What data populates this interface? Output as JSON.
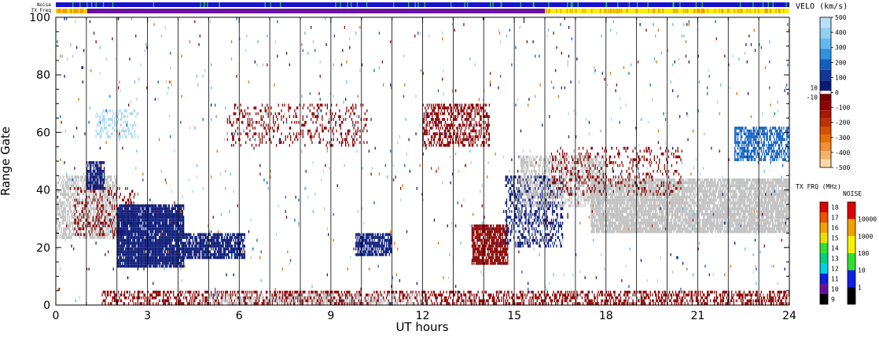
{
  "chart_data": {
    "type": "heatmap",
    "xlabel": "UT hours",
    "ylabel": "Range Gate",
    "xlim": [
      0,
      24
    ],
    "ylim": [
      0,
      100
    ],
    "x_ticks": [
      "0",
      "3",
      "6",
      "9",
      "12",
      "15",
      "18",
      "21",
      "24"
    ],
    "y_ticks": [
      "0",
      "20",
      "40",
      "60",
      "80",
      "100"
    ],
    "hour_gridlines": [
      1,
      2,
      3,
      4,
      5,
      6,
      7,
      8,
      9,
      10,
      11,
      12,
      13,
      14,
      15,
      16,
      17,
      18,
      19,
      20,
      21,
      22,
      23
    ],
    "strip_labels": {
      "noise": "Noise",
      "txfreq": "TX Freq"
    },
    "noise_strip": {
      "base_color": "#1a10d0",
      "accent_color": "#22c832"
    },
    "txfreq_strip": {
      "segments": [
        {
          "from": 0,
          "to": 1,
          "color": "#f0a000"
        },
        {
          "from": 1,
          "to": 16,
          "color": "#6a10a0"
        },
        {
          "from": 16,
          "to": 24,
          "color": "#f8f000"
        }
      ]
    },
    "velocity_colorbar": {
      "title": "VELO (km/s)",
      "tick_labels": [
        "500",
        "400",
        "300",
        "200",
        "100",
        "0",
        "-100",
        "-200",
        "-300",
        "-400",
        "-500"
      ],
      "tick_values": [
        500,
        400,
        300,
        200,
        100,
        0,
        -100,
        -200,
        -300,
        -400,
        -500
      ],
      "small_labels": [
        "10",
        "-10"
      ],
      "small_values": [
        10,
        -10
      ],
      "colors": [
        "#b8e0f8",
        "#90d0f0",
        "#60b8f0",
        "#3090e0",
        "#1060c0",
        "#103898",
        "#0a1a78",
        "#ffffff",
        "#780000",
        "#900000",
        "#a81808",
        "#c03000",
        "#d85000",
        "#e87000",
        "#f09038",
        "#f8b068",
        "#fcd8a8"
      ]
    },
    "txfreq_colorbar": {
      "title": "TX FRQ (MHz)",
      "tick_labels": [
        "18",
        "17",
        "16",
        "15",
        "14",
        "13",
        "12",
        "11",
        "10",
        "9"
      ],
      "colors": [
        "#e00000",
        "#f05000",
        "#f0a000",
        "#e8e000",
        "#30e030",
        "#00d080",
        "#00d0e8",
        "#1020e0",
        "#6a10a0",
        "#000000"
      ]
    },
    "noise_colorbar": {
      "title": "NOISE",
      "tick_labels": [
        "10000",
        "1000",
        "100",
        "10",
        "1"
      ],
      "colors": [
        "#e00000",
        "#f0a000",
        "#f8f000",
        "#30e030",
        "#1020e0",
        "#000000"
      ]
    },
    "regions": [
      {
        "name": "ground-scatter-early",
        "x": [
          0.0,
          2.0
        ],
        "y": [
          23,
          45
        ],
        "color": "#c0c0c0",
        "density": 0.6
      },
      {
        "name": "red-early",
        "x": [
          0.6,
          2.6
        ],
        "y": [
          24,
          42
        ],
        "color": "#8b0000",
        "density": 0.25
      },
      {
        "name": "blue-patch-1",
        "x": [
          1.0,
          1.6
        ],
        "y": [
          40,
          50
        ],
        "color": "#0a1a78",
        "density": 0.75
      },
      {
        "name": "blue-big-patch-a",
        "x": [
          2.0,
          4.2
        ],
        "y": [
          13,
          35
        ],
        "color": "#0a1a78",
        "density": 0.92
      },
      {
        "name": "blue-big-patch-b",
        "x": [
          4.2,
          6.2
        ],
        "y": [
          16,
          25
        ],
        "color": "#0a1a78",
        "density": 0.8
      },
      {
        "name": "blue-patch-10h",
        "x": [
          9.8,
          11.0
        ],
        "y": [
          17,
          25
        ],
        "color": "#0a1a78",
        "density": 0.75
      },
      {
        "name": "red-patch-14h",
        "x": [
          13.6,
          14.8
        ],
        "y": [
          14,
          28
        ],
        "color": "#8b0000",
        "density": 0.78
      },
      {
        "name": "red-band-60",
        "x": [
          5.6,
          10.2
        ],
        "y": [
          55,
          70
        ],
        "color": "#8b0000",
        "density": 0.18
      },
      {
        "name": "red-band-62",
        "x": [
          12.0,
          14.2
        ],
        "y": [
          55,
          70
        ],
        "color": "#8b0000",
        "density": 0.5
      },
      {
        "name": "light-blue-early",
        "x": [
          1.3,
          2.7
        ],
        "y": [
          58,
          68
        ],
        "color": "#a8d8f0",
        "density": 0.35
      },
      {
        "name": "mixed-15h",
        "x": [
          14.7,
          16.6
        ],
        "y": [
          20,
          45
        ],
        "color": "#0a1a78",
        "density": 0.4
      },
      {
        "name": "ground-scatter-late-a",
        "x": [
          15.2,
          18.0
        ],
        "y": [
          34,
          52
        ],
        "color": "#c0c0c0",
        "density": 0.5
      },
      {
        "name": "ground-scatter-late-b",
        "x": [
          17.5,
          24.0
        ],
        "y": [
          25,
          44
        ],
        "color": "#c0c0c0",
        "density": 0.85
      },
      {
        "name": "red-late",
        "x": [
          16.2,
          20.5
        ],
        "y": [
          38,
          55
        ],
        "color": "#8b0000",
        "density": 0.18
      },
      {
        "name": "blue-late-patch",
        "x": [
          22.2,
          24.0
        ],
        "y": [
          50,
          62
        ],
        "color": "#1060c0",
        "density": 0.6
      },
      {
        "name": "ground-band-low",
        "x": [
          1.5,
          24.0
        ],
        "y": [
          0,
          5
        ],
        "color": "#8b0000",
        "density": 0.45
      },
      {
        "name": "ground-band-low-grey",
        "x": [
          5.0,
          12.0
        ],
        "y": [
          0,
          4
        ],
        "color": "#c0c0c0",
        "density": 0.35
      },
      {
        "name": "sparse-scatter",
        "x": [
          0.0,
          24.0
        ],
        "y": [
          0,
          100
        ],
        "color": "mixed",
        "density": 0.012
      }
    ]
  }
}
